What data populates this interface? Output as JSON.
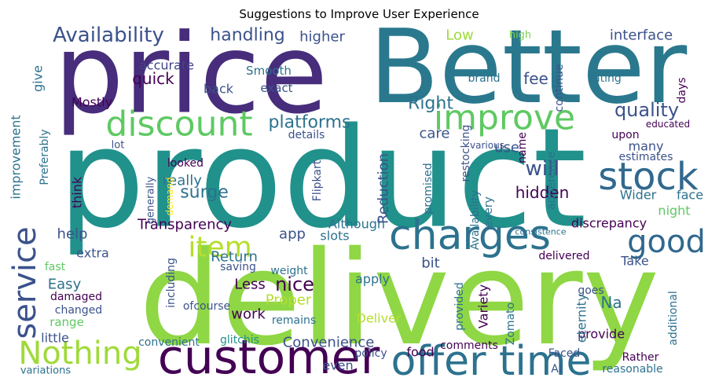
{
  "chart_data": {
    "type": "wordcloud",
    "title": "Suggestions to Improve User Experience",
    "words": [
      {
        "text": "product",
        "weight": 175,
        "color": "#21918c"
      },
      {
        "text": "delivery",
        "weight": 165,
        "color": "#8fd744"
      },
      {
        "text": "price",
        "weight": 140,
        "color": "#472d7b"
      },
      {
        "text": "Better",
        "weight": 130,
        "color": "#2a788e"
      },
      {
        "text": "customer",
        "weight": 60,
        "color": "#440154"
      },
      {
        "text": "offer time",
        "weight": 52,
        "color": "#2c728e"
      },
      {
        "text": "charges",
        "weight": 52,
        "color": "#2c728e"
      },
      {
        "text": "discount",
        "weight": 44,
        "color": "#5ec962"
      },
      {
        "text": "improve",
        "weight": 44,
        "color": "#5ec962"
      },
      {
        "text": "stock",
        "weight": 48,
        "color": "#31688e"
      },
      {
        "text": "Nothing",
        "weight": 40,
        "color": "#a0da39"
      },
      {
        "text": "service",
        "weight": 40,
        "color": "#3b528b"
      },
      {
        "text": "item",
        "weight": 36,
        "color": "#b5de2b"
      },
      {
        "text": "good",
        "weight": 40,
        "color": "#31688e"
      },
      {
        "text": "Availability",
        "weight": 26,
        "color": "#3b528b"
      },
      {
        "text": "handling",
        "weight": 22,
        "color": "#3b528b"
      },
      {
        "text": "interface",
        "weight": 18,
        "color": "#3b528b"
      },
      {
        "text": "Low",
        "weight": 18,
        "color": "#a0da39"
      },
      {
        "text": "higher",
        "weight": 18,
        "color": "#3b528b"
      },
      {
        "text": "high",
        "weight": 13,
        "color": "#7ad151"
      },
      {
        "text": "Right",
        "weight": 22,
        "color": "#2c728e"
      },
      {
        "text": "fee",
        "weight": 20,
        "color": "#3b528b"
      },
      {
        "text": "quality",
        "weight": 24,
        "color": "#3b528b"
      },
      {
        "text": "quick",
        "weight": 20,
        "color": "#440154"
      },
      {
        "text": "accurate",
        "weight": 16,
        "color": "#414487"
      },
      {
        "text": "Smooth",
        "weight": 15,
        "color": "#2c728e"
      },
      {
        "text": "back",
        "weight": 16,
        "color": "#3b528b"
      },
      {
        "text": "exact",
        "weight": 15,
        "color": "#3b528b"
      },
      {
        "text": "Mostly",
        "weight": 16,
        "color": "#440154"
      },
      {
        "text": "rating",
        "weight": 14,
        "color": "#2c728e"
      },
      {
        "text": "brand",
        "weight": 14,
        "color": "#2c728e"
      },
      {
        "text": "days",
        "weight": 14,
        "color": "#440154"
      },
      {
        "text": "continue",
        "weight": 14,
        "color": "#3b528b"
      },
      {
        "text": "give",
        "weight": 16,
        "color": "#2c728e"
      },
      {
        "text": "platforms",
        "weight": 22,
        "color": "#2c728e"
      },
      {
        "text": "use",
        "weight": 18,
        "color": "#3b528b"
      },
      {
        "text": "care",
        "weight": 18,
        "color": "#3b528b"
      },
      {
        "text": "details",
        "weight": 14,
        "color": "#3b528b"
      },
      {
        "text": "lot",
        "weight": 13,
        "color": "#3b528b"
      },
      {
        "text": "think",
        "weight": 16,
        "color": "#440154"
      },
      {
        "text": "improvement",
        "weight": 16,
        "color": "#2c728e"
      },
      {
        "text": "Preferably",
        "weight": 14,
        "color": "#2c728e"
      },
      {
        "text": "will",
        "weight": 26,
        "color": "#3b528b"
      },
      {
        "text": "hidden",
        "weight": 20,
        "color": "#440154"
      },
      {
        "text": "surge",
        "weight": 22,
        "color": "#2c728e"
      },
      {
        "text": "really",
        "weight": 18,
        "color": "#2c728e"
      },
      {
        "text": "looked",
        "weight": 14,
        "color": "#440154"
      },
      {
        "text": "demand",
        "weight": 12,
        "color": "#fde725"
      },
      {
        "text": "generally",
        "weight": 13,
        "color": "#3b528b"
      },
      {
        "text": "Transparency",
        "weight": 18,
        "color": "#440154"
      },
      {
        "text": "help",
        "weight": 18,
        "color": "#3b528b"
      },
      {
        "text": "extra",
        "weight": 16,
        "color": "#3b528b"
      },
      {
        "text": "Easy",
        "weight": 18,
        "color": "#2c728e"
      },
      {
        "text": "fast",
        "weight": 14,
        "color": "#5ec962"
      },
      {
        "text": "damaged",
        "weight": 14,
        "color": "#440154"
      },
      {
        "text": "changed",
        "weight": 14,
        "color": "#3b528b"
      },
      {
        "text": "range",
        "weight": 15,
        "color": "#5ec962"
      },
      {
        "text": "little",
        "weight": 16,
        "color": "#3b528b"
      },
      {
        "text": "variations",
        "weight": 13,
        "color": "#2c728e"
      },
      {
        "text": "Return",
        "weight": 18,
        "color": "#2c728e"
      },
      {
        "text": "Less",
        "weight": 18,
        "color": "#440154"
      },
      {
        "text": "nice",
        "weight": 24,
        "color": "#440154"
      },
      {
        "text": "saving",
        "weight": 14,
        "color": "#3b528b"
      },
      {
        "text": "weight",
        "weight": 14,
        "color": "#2c728e"
      },
      {
        "text": "Proper",
        "weight": 18,
        "color": "#b5de2b"
      },
      {
        "text": "work",
        "weight": 18,
        "color": "#440154"
      },
      {
        "text": "remains",
        "weight": 14,
        "color": "#2c728e"
      },
      {
        "text": "glitchis",
        "weight": 14,
        "color": "#21918c"
      },
      {
        "text": "Convenience",
        "weight": 18,
        "color": "#3b528b"
      },
      {
        "text": "convenient",
        "weight": 14,
        "color": "#2c728e"
      },
      {
        "text": "ofcourse",
        "weight": 14,
        "color": "#3b528b"
      },
      {
        "text": "including",
        "weight": 14,
        "color": "#3b528b"
      },
      {
        "text": "even",
        "weight": 16,
        "color": "#3b528b"
      },
      {
        "text": "policy",
        "weight": 14,
        "color": "#3b528b"
      },
      {
        "text": "food",
        "weight": 16,
        "color": "#440154"
      },
      {
        "text": "comments",
        "weight": 14,
        "color": "#440154"
      },
      {
        "text": "Deliver",
        "weight": 16,
        "color": "#b5de2b"
      },
      {
        "text": "apply",
        "weight": 16,
        "color": "#2c728e"
      },
      {
        "text": "bit",
        "weight": 18,
        "color": "#3b528b"
      },
      {
        "text": "Although",
        "weight": 16,
        "color": "#2c728e"
      },
      {
        "text": "app",
        "weight": 18,
        "color": "#3b528b"
      },
      {
        "text": "slots",
        "weight": 16,
        "color": "#2c728e"
      },
      {
        "text": "Reduction",
        "weight": 18,
        "color": "#3b528b"
      },
      {
        "text": "Flipkart",
        "weight": 14,
        "color": "#3b528b"
      },
      {
        "text": "Na",
        "weight": 20,
        "color": "#2c728e"
      },
      {
        "text": "Take",
        "weight": 16,
        "color": "#3b528b"
      },
      {
        "text": "delivered",
        "weight": 14,
        "color": "#440154"
      },
      {
        "text": "discrepancy",
        "weight": 16,
        "color": "#440154"
      },
      {
        "text": "night",
        "weight": 16,
        "color": "#5ec962"
      },
      {
        "text": "Wider",
        "weight": 16,
        "color": "#2c728e"
      },
      {
        "text": "face",
        "weight": 16,
        "color": "#2c728e"
      },
      {
        "text": "estimates",
        "weight": 14,
        "color": "#3b528b"
      },
      {
        "text": "many",
        "weight": 16,
        "color": "#3b528b"
      },
      {
        "text": "upon",
        "weight": 14,
        "color": "#440154"
      },
      {
        "text": "educated",
        "weight": 12,
        "color": "#440154"
      },
      {
        "text": "provide",
        "weight": 16,
        "color": "#440154"
      },
      {
        "text": "eternity",
        "weight": 16,
        "color": "#2c728e"
      },
      {
        "text": "Zomato",
        "weight": 14,
        "color": "#2c728e"
      },
      {
        "text": "goes",
        "weight": 14,
        "color": "#3b528b"
      },
      {
        "text": "Variety",
        "weight": 16,
        "color": "#440154"
      },
      {
        "text": "provided",
        "weight": 14,
        "color": "#2c728e"
      },
      {
        "text": "reasonable",
        "weight": 14,
        "color": "#2c728e"
      },
      {
        "text": "Rather",
        "weight": 14,
        "color": "#440154"
      },
      {
        "text": "Faced",
        "weight": 14,
        "color": "#3b528b"
      },
      {
        "text": "Ai",
        "weight": 14,
        "color": "#3b528b"
      },
      {
        "text": "additional",
        "weight": 14,
        "color": "#2c728e"
      },
      {
        "text": "adherence",
        "weight": 14,
        "color": "#2c728e"
      },
      {
        "text": "restocking",
        "weight": 14,
        "color": "#3b528b"
      },
      {
        "text": "promised",
        "weight": 14,
        "color": "#2c728e"
      },
      {
        "text": "Availability",
        "weight": 14,
        "color": "#2c728e"
      },
      {
        "text": "every",
        "weight": 14,
        "color": "#2c728e"
      },
      {
        "text": "name",
        "weight": 14,
        "color": "#440154"
      },
      {
        "text": "various",
        "weight": 12,
        "color": "#3b528b"
      },
      {
        "text": "consistence",
        "weight": 11,
        "color": "#2c728e"
      }
    ]
  }
}
